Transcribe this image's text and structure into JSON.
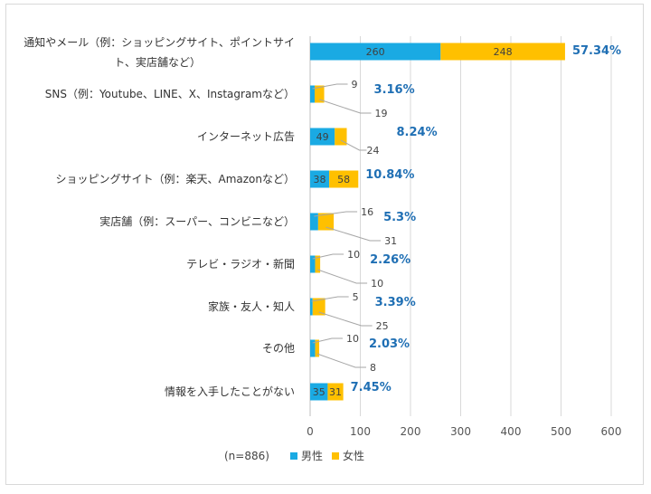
{
  "chart_data": {
    "type": "bar",
    "orientation": "horizontal",
    "stacked": true,
    "title": "",
    "xlim": [
      0,
      600
    ],
    "ticks": [
      0,
      100,
      200,
      300,
      400,
      500,
      600
    ],
    "grid": true,
    "legend_position": "bottom",
    "sample_note": "(n=886)",
    "categories": [
      [
        "通知やメール（例：ショッピングサイト、ポイントサイ",
        "ト、実店舗など）"
      ],
      [
        "SNS（例：Youtube、LINE、X、Instagramなど）"
      ],
      [
        "インターネット広告"
      ],
      [
        "ショッピングサイト（例：楽天、Amazonなど）"
      ],
      [
        "実店舗（例：スーパー、コンビニなど）"
      ],
      [
        "テレビ・ラジオ・新聞"
      ],
      [
        "家族・友人・知人"
      ],
      [
        "その他"
      ],
      [
        "情報を入手したことがない"
      ]
    ],
    "series": [
      {
        "name": "男性",
        "color": "#1aaae3",
        "values": [
          260,
          9,
          49,
          38,
          16,
          10,
          5,
          10,
          35
        ]
      },
      {
        "name": "女性",
        "color": "#ffc000",
        "values": [
          248,
          19,
          24,
          58,
          31,
          10,
          25,
          8,
          31
        ]
      }
    ],
    "percentages": [
      "57.34%",
      "3.16%",
      "8.24%",
      "10.84%",
      "5.3%",
      "2.26%",
      "3.39%",
      "2.03%",
      "7.45%"
    ],
    "label_mode": [
      "inside",
      "callout",
      "callout-female",
      "inside",
      "callout",
      "callout",
      "callout",
      "callout",
      "inside"
    ]
  }
}
